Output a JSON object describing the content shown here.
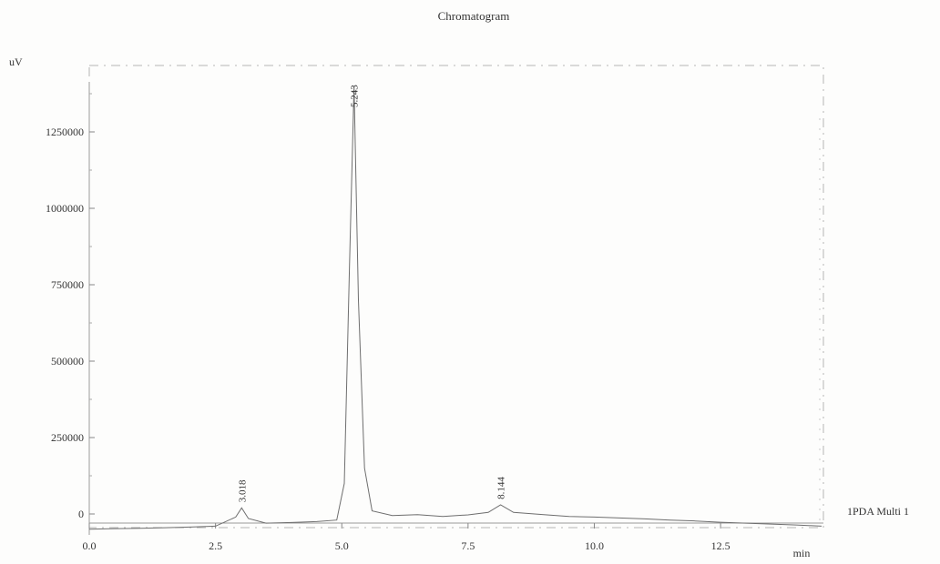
{
  "chart_data": {
    "type": "line",
    "title": "Chromatogram",
    "ylabel": "uV",
    "xlabel": "min",
    "xlim": [
      0.0,
      14.5
    ],
    "ylim": [
      -70000,
      1500000
    ],
    "x_ticks": [
      "0.0",
      "2.5",
      "5.0",
      "7.5",
      "10.0",
      "12.5"
    ],
    "y_ticks": [
      "0",
      "250000",
      "500000",
      "750000",
      "1000000",
      "1250000"
    ],
    "grid": false,
    "legend_position": "right",
    "series": [
      {
        "name": "1PDA Multi 1",
        "x": [
          0.0,
          0.5,
          1.0,
          1.5,
          2.0,
          2.5,
          2.9,
          3.018,
          3.15,
          3.5,
          4.0,
          4.5,
          4.9,
          5.05,
          5.15,
          5.243,
          5.33,
          5.45,
          5.6,
          6.0,
          6.5,
          7.0,
          7.5,
          7.9,
          8.144,
          8.4,
          9.0,
          9.5,
          10.0,
          10.5,
          11.0,
          11.5,
          12.0,
          12.5,
          13.0,
          13.5,
          14.0,
          14.5
        ],
        "y": [
          -50000,
          -48000,
          -47000,
          -45000,
          -43000,
          -40000,
          -10000,
          20000,
          -15000,
          -30000,
          -28000,
          -25000,
          -20000,
          100000,
          800000,
          1400000,
          700000,
          150000,
          10000,
          -5000,
          -2000,
          -8000,
          -3000,
          5000,
          30000,
          5000,
          -2000,
          -8000,
          -10000,
          -13000,
          -16000,
          -20000,
          -23000,
          -27000,
          -30000,
          -33000,
          -36000,
          -40000
        ]
      }
    ],
    "peak_labels": [
      {
        "x": 3.018,
        "y": 20000,
        "label": "3.018"
      },
      {
        "x": 5.243,
        "y": 1400000,
        "label": "5.243"
      },
      {
        "x": 8.144,
        "y": 30000,
        "label": "8.144"
      }
    ]
  }
}
